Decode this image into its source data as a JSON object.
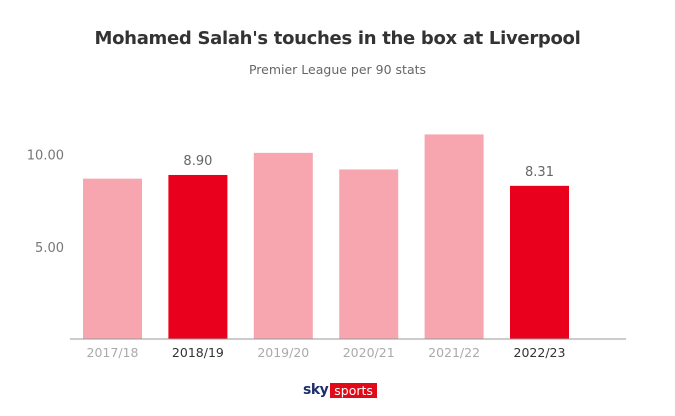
{
  "chart_data": {
    "type": "bar",
    "title": "Mohamed Salah's touches in the box at Liverpool",
    "subtitle": "Premier League per 90 stats",
    "categories": [
      "2017/18",
      "2018/19",
      "2019/20",
      "2020/21",
      "2021/22",
      "2022/23"
    ],
    "values": [
      8.7,
      8.9,
      10.1,
      9.2,
      11.1,
      8.31
    ],
    "data_labels": [
      "",
      "8.90",
      "",
      "",
      "",
      "8.31"
    ],
    "highlighted": [
      false,
      true,
      false,
      false,
      false,
      true
    ],
    "yticks": [
      {
        "value": 5,
        "label": "5.00"
      },
      {
        "value": 10,
        "label": "10.00"
      }
    ],
    "ylim": [
      0,
      11.5
    ],
    "xlabel": "",
    "ylabel": "",
    "grid": false,
    "colors": {
      "highlight": "#e8001c",
      "muted": "#f7a6b0",
      "axis": "#999999"
    }
  },
  "branding": {
    "logo_text": "sky sports"
  }
}
